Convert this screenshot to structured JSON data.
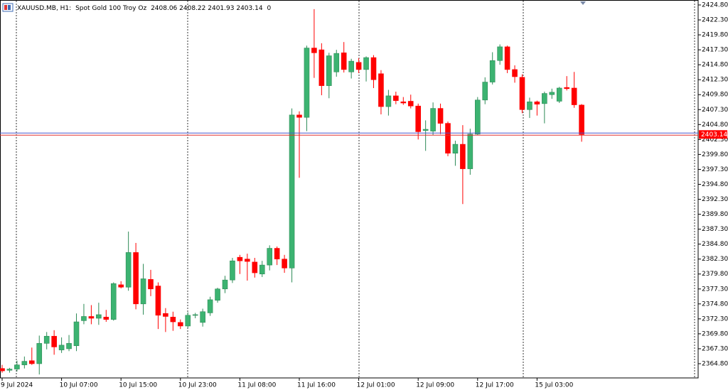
{
  "chart_data": {
    "type": "candlestick",
    "title": "XAUUSD.MB, H1:",
    "subtitle": "Spot Gold 100 Troy Oz",
    "volume": 0,
    "categories": [
      "9 Jul 2024",
      null,
      null,
      null,
      null,
      null,
      null,
      null,
      "10 Jul 07:00",
      null,
      null,
      null,
      null,
      null,
      null,
      null,
      "10 Jul 15:00",
      null,
      null,
      null,
      null,
      null,
      null,
      null,
      "10 Jul 23:00",
      null,
      null,
      null,
      null,
      null,
      null,
      null,
      "11 Jul 08:00",
      null,
      null,
      null,
      null,
      null,
      null,
      null,
      "11 Jul 16:00",
      null,
      null,
      null,
      null,
      null,
      null,
      null,
      "12 Jul 01:00",
      null,
      null,
      null,
      null,
      null,
      null,
      null,
      "12 Jul 09:00",
      null,
      null,
      null,
      null,
      null,
      null,
      null,
      "12 Jul 17:00",
      null,
      null,
      null,
      null,
      null,
      null,
      null,
      "15 Jul 03:00",
      null,
      null,
      null,
      null,
      null,
      null
    ],
    "open": [
      2364.0,
      2363.7,
      2363.9,
      2364.6,
      2365.3,
      2364.8,
      2368.2,
      2369.4,
      2367.1,
      2367.3,
      2367.8,
      2372.0,
      2372.7,
      2372.4,
      2372.6,
      2372.2,
      2378.0,
      2377.6,
      2383.4,
      2374.8,
      2378.9,
      2377.8,
      2373.2,
      2372.6,
      2371.7,
      2371.1,
      2372.9,
      2371.7,
      2373.3,
      2375.4,
      2377.3,
      2378.8,
      2382.6,
      2382.3,
      2381.8,
      2379.8,
      2381.3,
      2384.1,
      2382.3,
      2380.8,
      2406.4,
      2406.0,
      2417.6,
      2417.3,
      2411.3,
      2413.6,
      2416.8,
      2413.6,
      2415.2,
      2414.0,
      2416.0,
      2413.3,
      2407.8,
      2409.6,
      2408.6,
      2408.7,
      2407.9,
      2403.8,
      2403.7,
      2407.5,
      2405.0,
      2400.0,
      2401.5,
      2397.4,
      2403.2,
      2408.9,
      2411.9,
      2415.5,
      2417.8,
      2414.0,
      2412.7,
      2407.3,
      2408.6,
      2408.3,
      2409.8,
      2408.7,
      2411.0,
      2410.9,
      2408.06
    ],
    "high": [
      2364.6,
      2364.1,
      2365.3,
      2366.0,
      2367.5,
      2369.5,
      2370.1,
      2370.4,
      2369.2,
      2369.6,
      2373.2,
      2374.8,
      2374.6,
      2375.0,
      2373.8,
      2378.4,
      2378.6,
      2386.9,
      2385.0,
      2381.5,
      2380.5,
      2378.4,
      2374.1,
      2373.5,
      2372.2,
      2373.4,
      2373.3,
      2374.0,
      2376.0,
      2377.5,
      2379.5,
      2382.5,
      2383.0,
      2383.2,
      2382.5,
      2382.0,
      2384.6,
      2384.4,
      2383.0,
      2407.5,
      2407.0,
      2418.0,
      2424.1,
      2418.4,
      2416.8,
      2417.3,
      2418.6,
      2415.8,
      2415.9,
      2416.2,
      2416.4,
      2413.9,
      2410.6,
      2410.3,
      2409.4,
      2409.8,
      2408.3,
      2405.5,
      2408.5,
      2408.3,
      2405.3,
      2402.1,
      2404.7,
      2404.1,
      2409.4,
      2412.7,
      2416.9,
      2418.2,
      2418.0,
      2414.7,
      2413.2,
      2409.3,
      2408.8,
      2410.3,
      2410.8,
      2411.1,
      2412.9,
      2413.6,
      2408.22
    ],
    "low": [
      2363.3,
      2363.3,
      2363.5,
      2364.0,
      2364.6,
      2363.0,
      2367.2,
      2366.3,
      2366.6,
      2366.9,
      2366.9,
      2371.4,
      2371.4,
      2371.3,
      2371.8,
      2372.0,
      2377.4,
      2377.0,
      2373.9,
      2373.0,
      2376.1,
      2370.6,
      2370.1,
      2370.3,
      2370.6,
      2370.8,
      2372.4,
      2371.0,
      2372.8,
      2375.0,
      2376.6,
      2378.3,
      2379.8,
      2378.7,
      2379.2,
      2379.3,
      2380.4,
      2381.3,
      2380.0,
      2378.4,
      2395.9,
      2403.7,
      2412.6,
      2409.7,
      2409.2,
      2412.8,
      2413.5,
      2412.5,
      2413.4,
      2412.0,
      2410.9,
      2406.5,
      2406.3,
      2408.2,
      2408.1,
      2407.5,
      2402.3,
      2400.4,
      2403.0,
      2403.2,
      2399.5,
      2397.9,
      2391.5,
      2396.4,
      2403.0,
      2408.2,
      2411.5,
      2414.8,
      2413.4,
      2411.8,
      2406.7,
      2405.9,
      2406.3,
      2405.0,
      2409.1,
      2408.4,
      2410.5,
      2407.6,
      2401.93
    ],
    "close": [
      2363.6,
      2363.9,
      2364.6,
      2365.2,
      2364.8,
      2368.2,
      2369.4,
      2367.6,
      2367.9,
      2368.2,
      2371.8,
      2372.7,
      2372.4,
      2373.0,
      2372.2,
      2378.2,
      2377.6,
      2383.4,
      2374.8,
      2379.0,
      2377.3,
      2372.9,
      2372.7,
      2371.8,
      2371.1,
      2372.9,
      2373.0,
      2373.5,
      2375.5,
      2377.3,
      2378.8,
      2382.0,
      2382.0,
      2381.9,
      2380.0,
      2381.3,
      2384.1,
      2382.3,
      2380.8,
      2406.4,
      2406.0,
      2417.6,
      2416.8,
      2411.3,
      2416.3,
      2416.7,
      2414.0,
      2415.4,
      2414.0,
      2416.0,
      2412.3,
      2407.8,
      2409.6,
      2408.8,
      2408.4,
      2407.9,
      2403.6,
      2404.0,
      2407.5,
      2405.0,
      2400.0,
      2401.5,
      2397.4,
      2403.2,
      2408.9,
      2411.9,
      2415.5,
      2417.8,
      2414.0,
      2412.8,
      2407.3,
      2408.6,
      2408.2,
      2410.0,
      2410.2,
      2410.9,
      2410.8,
      2408.1,
      2403.14
    ],
    "up_color": "#3cb371",
    "down_color": "#ff0000",
    "ylim": [
      2362.42,
      2425.63
    ],
    "yticks": [
      {
        "value": 2364.8,
        "label": "2364.80"
      },
      {
        "value": 2367.3,
        "label": "2367.30"
      },
      {
        "value": 2369.8,
        "label": "2369.80"
      },
      {
        "value": 2372.3,
        "label": "2372.30"
      },
      {
        "value": 2374.8,
        "label": "2374.80"
      },
      {
        "value": 2377.3,
        "label": "2377.30"
      },
      {
        "value": 2379.8,
        "label": "2379.80"
      },
      {
        "value": 2382.3,
        "label": "2382.30"
      },
      {
        "value": 2384.8,
        "label": "2384.80"
      },
      {
        "value": 2387.3,
        "label": "2387.30"
      },
      {
        "value": 2389.8,
        "label": "2389.80"
      },
      {
        "value": 2392.3,
        "label": "2392.30"
      },
      {
        "value": 2394.8,
        "label": "2394.80"
      },
      {
        "value": 2397.3,
        "label": "2397.30"
      },
      {
        "value": 2399.8,
        "label": "2399.80"
      },
      {
        "value": 2402.3,
        "label": "2402.30"
      },
      {
        "value": 2404.8,
        "label": "2404.80"
      },
      {
        "value": 2407.3,
        "label": "2407.30"
      },
      {
        "value": 2409.8,
        "label": "2409.80"
      },
      {
        "value": 2412.3,
        "label": "2412.30"
      },
      {
        "value": 2414.8,
        "label": "2414.80"
      },
      {
        "value": 2417.3,
        "label": "2417.30"
      },
      {
        "value": 2419.8,
        "label": "2419.80"
      },
      {
        "value": 2422.3,
        "label": "2422.30"
      },
      {
        "value": 2424.8,
        "label": "2424.80"
      }
    ],
    "grid": false
  }
}
